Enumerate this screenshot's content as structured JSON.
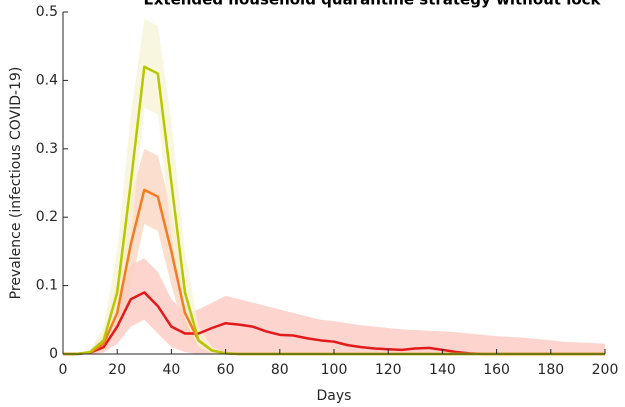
{
  "chart_data": {
    "type": "line",
    "title": "Extended household quarantine strategy without lock",
    "xlabel": "Days",
    "ylabel": "Prevalence (infectious COVID-19)",
    "x": [
      0,
      5,
      10,
      15,
      20,
      25,
      30,
      35,
      40,
      45,
      50,
      55,
      60,
      65,
      70,
      75,
      80,
      85,
      90,
      95,
      100,
      105,
      110,
      115,
      120,
      125,
      130,
      135,
      140,
      145,
      150,
      155,
      160,
      165,
      170,
      175,
      180,
      185,
      190,
      195,
      200
    ],
    "xlim": [
      0,
      200
    ],
    "xticks": [
      0,
      20,
      40,
      60,
      80,
      100,
      120,
      140,
      160,
      180,
      200
    ],
    "ylim": [
      0,
      0.5
    ],
    "yticks": [
      0,
      0.1,
      0.2,
      0.3,
      0.4,
      0.5
    ],
    "series": [
      {
        "color": "#e31a1c",
        "band_color": "#fcc5bd",
        "values": [
          0,
          0,
          0.002,
          0.01,
          0.04,
          0.08,
          0.09,
          0.07,
          0.04,
          0.03,
          0.03,
          0.038,
          0.045,
          0.043,
          0.04,
          0.033,
          0.028,
          0.027,
          0.023,
          0.02,
          0.018,
          0.013,
          0.01,
          0.008,
          0.007,
          0.006,
          0.008,
          0.009,
          0.006,
          0.003,
          0.001,
          0,
          0,
          0,
          0,
          0,
          0,
          0,
          0,
          0,
          0
        ],
        "upper": [
          0,
          0,
          0.004,
          0.03,
          0.08,
          0.13,
          0.14,
          0.12,
          0.08,
          0.06,
          0.065,
          0.075,
          0.085,
          0.08,
          0.075,
          0.07,
          0.065,
          0.06,
          0.055,
          0.05,
          0.048,
          0.045,
          0.042,
          0.04,
          0.038,
          0.036,
          0.035,
          0.034,
          0.033,
          0.032,
          0.03,
          0.028,
          0.026,
          0.025,
          0.024,
          0.022,
          0.02,
          0.018,
          0.017,
          0.016,
          0.015
        ],
        "lower": [
          0,
          0,
          0,
          0.002,
          0.015,
          0.04,
          0.05,
          0.03,
          0.01,
          0.003,
          0,
          0,
          0,
          0,
          0,
          0,
          0,
          0,
          0,
          0,
          0,
          0,
          0,
          0,
          0,
          0,
          0,
          0,
          0,
          0,
          0,
          0,
          0,
          0,
          0,
          0,
          0,
          0,
          0,
          0,
          0
        ]
      },
      {
        "color": "#f47c20",
        "band_color": "#fbd3bd",
        "values": [
          0,
          0,
          0.002,
          0.015,
          0.06,
          0.16,
          0.24,
          0.23,
          0.15,
          0.06,
          0.02,
          0.005,
          0.001,
          0,
          0,
          0,
          0,
          0,
          0,
          0,
          0,
          0,
          0,
          0,
          0,
          0,
          0,
          0,
          0,
          0,
          0,
          0,
          0,
          0,
          0,
          0,
          0,
          0,
          0,
          0,
          0
        ],
        "upper": [
          0,
          0,
          0.004,
          0.03,
          0.11,
          0.23,
          0.3,
          0.29,
          0.21,
          0.1,
          0.03,
          0.01,
          0.002,
          0,
          0,
          0,
          0,
          0,
          0,
          0,
          0,
          0,
          0,
          0,
          0,
          0,
          0,
          0,
          0,
          0,
          0,
          0,
          0,
          0,
          0,
          0,
          0,
          0,
          0,
          0,
          0
        ],
        "lower": [
          0,
          0,
          0.001,
          0.005,
          0.03,
          0.1,
          0.19,
          0.18,
          0.1,
          0.03,
          0.008,
          0.002,
          0,
          0,
          0,
          0,
          0,
          0,
          0,
          0,
          0,
          0,
          0,
          0,
          0,
          0,
          0,
          0,
          0,
          0,
          0,
          0,
          0,
          0,
          0,
          0,
          0,
          0,
          0,
          0,
          0
        ]
      },
      {
        "color": "#b5c800",
        "band_color": "#f7f3d6",
        "values": [
          0,
          0,
          0.003,
          0.02,
          0.09,
          0.25,
          0.42,
          0.41,
          0.25,
          0.09,
          0.02,
          0.005,
          0.001,
          0,
          0,
          0,
          0,
          0,
          0,
          0,
          0,
          0,
          0,
          0,
          0,
          0,
          0,
          0,
          0,
          0,
          0,
          0,
          0,
          0,
          0,
          0,
          0,
          0,
          0,
          0,
          0
        ],
        "upper": [
          0,
          0,
          0.005,
          0.04,
          0.15,
          0.35,
          0.49,
          0.48,
          0.34,
          0.15,
          0.04,
          0.01,
          0.002,
          0,
          0,
          0,
          0,
          0,
          0,
          0,
          0,
          0,
          0,
          0,
          0,
          0,
          0,
          0,
          0,
          0,
          0,
          0,
          0,
          0,
          0,
          0,
          0,
          0,
          0,
          0,
          0
        ],
        "lower": [
          0,
          0,
          0.001,
          0.01,
          0.05,
          0.17,
          0.36,
          0.35,
          0.17,
          0.05,
          0.01,
          0.001,
          0,
          0,
          0,
          0,
          0,
          0,
          0,
          0,
          0,
          0,
          0,
          0,
          0,
          0,
          0,
          0,
          0,
          0,
          0,
          0,
          0,
          0,
          0,
          0,
          0,
          0,
          0,
          0,
          0
        ]
      }
    ]
  }
}
